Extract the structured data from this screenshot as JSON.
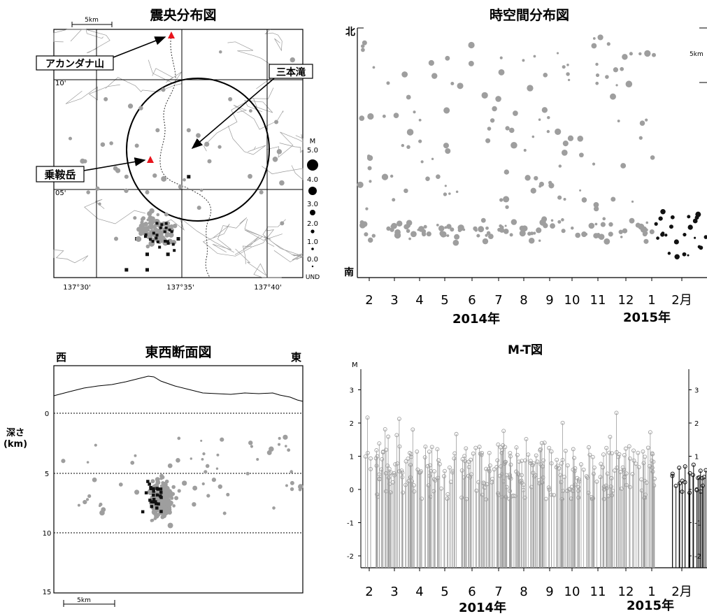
{
  "epicenter_map": {
    "title": "震央分布図",
    "scale_label": "5km",
    "lat_labels": [
      "10'",
      "05'"
    ],
    "lon_labels": [
      "137°30'",
      "137°35'",
      "137°40'"
    ],
    "callouts": [
      {
        "id": "akandana",
        "label": "アカンダナ山"
      },
      {
        "id": "sanbontaki",
        "label": "三本滝"
      },
      {
        "id": "norikura",
        "label": "乗鞍岳"
      }
    ],
    "volcano_color": "#e8141c",
    "circle_note": ""
  },
  "magnitude_legend": {
    "title": "M",
    "labels": [
      "5.0",
      "4.0",
      "3.0",
      "2.0",
      "1.0",
      "0.0",
      "UND"
    ]
  },
  "spacetime": {
    "title": "時空間分布図",
    "north_label": "北",
    "south_label": "南",
    "scale_label": "5km",
    "month_labels": [
      "2",
      "3",
      "4",
      "5",
      "6",
      "7",
      "8",
      "9",
      "10",
      "11",
      "12",
      "1",
      "2月"
    ],
    "year_labels": [
      "2014年",
      "2015年"
    ]
  },
  "cross_section": {
    "title": "東西断面図",
    "west_label": "西",
    "east_label": "東",
    "depth_label_1": "深さ",
    "depth_label_2": "(km)",
    "depth_ticks": [
      "0",
      "5",
      "10",
      "15"
    ],
    "scale_label": "5km"
  },
  "mt": {
    "title": "M-T図",
    "y_label": "M",
    "y_ticks": [
      "3",
      "2",
      "1",
      "0",
      "-1",
      "-2"
    ],
    "month_labels": [
      "2",
      "3",
      "4",
      "5",
      "6",
      "7",
      "8",
      "9",
      "10",
      "11",
      "12",
      "1",
      "2月"
    ],
    "year_labels": [
      "2014年",
      "2015年"
    ]
  },
  "colors": {
    "old_events": "#9e9e9e",
    "recent_events": "#111111",
    "contours": "#9a9a9a"
  },
  "chart_data": [
    {
      "type": "scatter",
      "title": "震央分布図",
      "x_ticks": [
        "137°30'",
        "137°35'",
        "137°40'"
      ],
      "y_ticks": [
        "10'",
        "05'"
      ],
      "xlim": [
        137.47,
        137.71
      ],
      "ylim": [
        36.035,
        36.195
      ],
      "series": [
        {
          "values": [
            [
              137.54,
              36.1
            ],
            [
              137.55,
              36.12
            ],
            [
              137.56,
              36.09
            ],
            [
              137.58,
              36.07
            ],
            [
              137.6,
              36.13
            ],
            [
              137.62,
              36.11
            ],
            [
              137.61,
              36.08
            ],
            [
              137.52,
              36.15
            ],
            [
              137.5,
              36.11
            ],
            [
              137.67,
              36.09
            ],
            [
              137.64,
              36.15
            ],
            [
              137.69,
              36.07
            ],
            [
              137.53,
              36.06
            ],
            [
              137.57,
              36.13
            ]
          ]
        },
        {
          "values": [
            [
              137.57,
              36.06
            ],
            [
              137.56,
              36.05
            ],
            [
              137.55,
              36.06
            ],
            [
              137.58,
              36.05
            ],
            [
              137.54,
              36.04
            ],
            [
              137.59,
              36.06
            ],
            [
              137.6,
              36.1
            ],
            [
              137.56,
              36.04
            ]
          ]
        }
      ]
    },
    {
      "type": "scatter",
      "title": "時空間分布図",
      "x_ticks": [
        "2",
        "3",
        "4",
        "5",
        "6",
        "7",
        "8",
        "9",
        "10",
        "11",
        "12",
        "1",
        "2月"
      ],
      "y_ticks": [
        "北",
        "南"
      ],
      "series": []
    },
    {
      "type": "scatter",
      "title": "東西断面図",
      "ylabel": "深さ (km)",
      "x_ticks": [],
      "y_ticks": [
        "0",
        "5",
        "10",
        "15"
      ],
      "ylim": [
        15,
        0
      ],
      "series": []
    },
    {
      "type": "scatter",
      "title": "M-T図",
      "ylabel": "M",
      "x_ticks": [
        "2",
        "3",
        "4",
        "5",
        "6",
        "7",
        "8",
        "9",
        "10",
        "11",
        "12",
        "1",
        "2月"
      ],
      "y_ticks": [
        "3",
        "2",
        "1",
        "0",
        "-1",
        "-2"
      ],
      "ylim": [
        -2.5,
        3.5
      ],
      "series": []
    }
  ]
}
